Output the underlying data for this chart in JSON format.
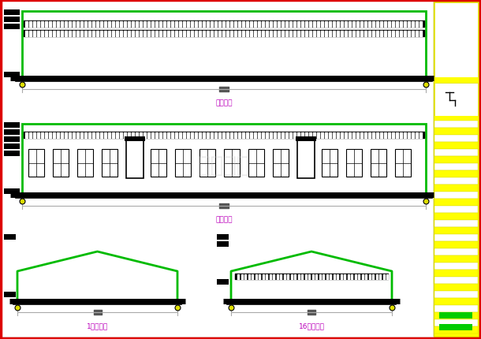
{
  "bg_color": "#e8e8e0",
  "white": "#ffffff",
  "border_color": "#dd0000",
  "green": "#00bb00",
  "black": "#000000",
  "gray": "#888888",
  "dark_gray": "#555555",
  "magenta": "#bb00bb",
  "yellow": "#ffff00",
  "gold": "#dddd00",
  "light_gray": "#aaaaaa",
  "title1": "顶柱立面",
  "title2": "纵立面图",
  "title3": "1轴立面图",
  "title4": "16轴立面图"
}
